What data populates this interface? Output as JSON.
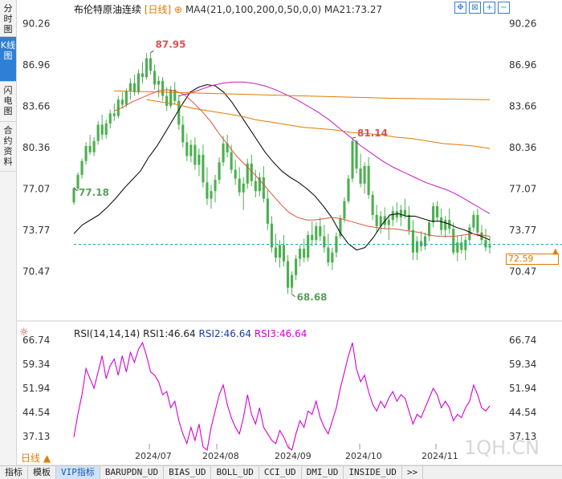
{
  "sidebar": {
    "tabs": [
      {
        "label": "分时图",
        "active": false
      },
      {
        "label": "K线图",
        "active": true
      },
      {
        "label": "闪电图",
        "active": false
      },
      {
        "label": "合约资料",
        "active": false
      }
    ]
  },
  "header": {
    "name": "布伦特原油连续",
    "period": "[日线]",
    "ma4": "MA4(21,0,100,200,0,50,0,0)",
    "ma21": "MA21:73.27"
  },
  "toolbar_icons": [
    "expand-icon",
    "shrink-icon",
    "zoom-in-icon",
    "zoom-out-icon"
  ],
  "price_axis": {
    "left_labels": [
      "90.26",
      "86.96",
      "83.66",
      "80.36",
      "77.07",
      "73.77",
      "70.47"
    ],
    "right_labels": [
      "90.26",
      "86.96",
      "83.66",
      "80.36",
      "77.07",
      "73.77",
      "70.47"
    ]
  },
  "current_price": "72.59",
  "annotations": {
    "high": "87.95",
    "low": "68.68",
    "start": "77.18",
    "peak2": "81.14"
  },
  "rsi": {
    "label": "RSI(14,14,14)",
    "rsi1": "RSI1:46.64",
    "rsi2": "RSI2:46.64",
    "rsi3": "RSI3:46.64",
    "labels": [
      "66.74",
      "59.34",
      "51.94",
      "44.54",
      "37.13"
    ]
  },
  "date_axis": [
    "2024/07",
    "2024/08",
    "2024/09",
    "2024/10",
    "2024/11"
  ],
  "period_button": "日线 ▲",
  "watermark": "1QH.CN",
  "bottom_tabs": [
    {
      "label": "指标",
      "active": false
    },
    {
      "label": "模板",
      "active": false
    },
    {
      "label": "VIP指标",
      "active": true
    },
    {
      "label": "BARUPDN_UD",
      "active": false
    },
    {
      "label": "BIAS_UD",
      "active": false
    },
    {
      "label": "BOLL_UD",
      "active": false
    },
    {
      "label": "CCI_UD",
      "active": false
    },
    {
      "label": "DMI_UD",
      "active": false
    },
    {
      "label": "INSIDE_UD",
      "active": false
    },
    {
      "label": ">>",
      "active": false
    }
  ],
  "colors": {
    "up": "#4caf50",
    "down": "#4caf50",
    "ma_black": "#111111",
    "ma_red": "#e0533b",
    "ma_magenta": "#c31bc3",
    "ma_orange": "#e07b00",
    "rsi": "#d400d4",
    "current_line": "#1e9fb5"
  },
  "chart_data": {
    "type": "candlestick",
    "ylim": [
      67.5,
      91.0
    ],
    "rsi_ylim": [
      32,
      69
    ],
    "candles": [
      [
        76.0,
        77.2,
        75.8,
        77.1
      ],
      [
        77.1,
        78.4,
        76.9,
        78.2
      ],
      [
        78.2,
        79.5,
        77.9,
        79.3
      ],
      [
        79.3,
        80.8,
        79.0,
        80.5
      ],
      [
        80.5,
        81.4,
        79.8,
        80.0
      ],
      [
        80.0,
        81.2,
        79.7,
        80.9
      ],
      [
        80.9,
        82.5,
        80.6,
        82.2
      ],
      [
        82.2,
        83.0,
        81.0,
        81.4
      ],
      [
        81.4,
        82.6,
        81.1,
        82.3
      ],
      [
        82.3,
        83.4,
        81.9,
        83.1
      ],
      [
        83.1,
        83.9,
        82.5,
        82.9
      ],
      [
        82.9,
        84.5,
        82.7,
        84.2
      ],
      [
        84.2,
        84.8,
        83.5,
        83.8
      ],
      [
        83.8,
        85.1,
        83.6,
        84.9
      ],
      [
        84.9,
        85.9,
        84.2,
        85.5
      ],
      [
        85.5,
        86.2,
        84.5,
        84.8
      ],
      [
        84.8,
        86.6,
        84.6,
        86.3
      ],
      [
        86.3,
        87.2,
        85.5,
        86.0
      ],
      [
        86.0,
        87.9,
        85.8,
        87.5
      ],
      [
        87.5,
        87.95,
        86.2,
        86.5
      ],
      [
        86.5,
        87.0,
        85.0,
        85.4
      ],
      [
        85.4,
        86.1,
        84.4,
        85.7
      ],
      [
        85.7,
        86.0,
        84.1,
        84.5
      ],
      [
        84.5,
        85.2,
        83.3,
        83.7
      ],
      [
        83.7,
        85.3,
        83.5,
        85.0
      ],
      [
        85.0,
        85.6,
        83.8,
        84.1
      ],
      [
        84.1,
        84.6,
        81.8,
        82.2
      ],
      [
        82.2,
        82.9,
        80.4,
        80.8
      ],
      [
        80.8,
        81.5,
        79.3,
        79.7
      ],
      [
        79.7,
        81.0,
        79.2,
        80.6
      ],
      [
        80.6,
        81.2,
        78.6,
        79.0
      ],
      [
        79.0,
        80.3,
        78.1,
        79.8
      ],
      [
        79.8,
        80.6,
        77.2,
        77.6
      ],
      [
        77.6,
        78.8,
        75.8,
        76.3
      ],
      [
        76.3,
        77.4,
        75.5,
        76.9
      ],
      [
        76.9,
        78.2,
        76.0,
        77.8
      ],
      [
        77.8,
        79.6,
        77.5,
        79.2
      ],
      [
        79.2,
        81.3,
        78.9,
        80.7
      ],
      [
        80.7,
        81.4,
        79.6,
        80.0
      ],
      [
        80.0,
        80.6,
        78.3,
        78.6
      ],
      [
        78.6,
        79.4,
        77.4,
        77.9
      ],
      [
        77.9,
        78.8,
        76.5,
        76.8
      ],
      [
        76.8,
        78.0,
        75.4,
        77.5
      ],
      [
        77.5,
        79.5,
        77.1,
        79.1
      ],
      [
        79.1,
        79.8,
        77.3,
        77.7
      ],
      [
        77.7,
        78.6,
        76.4,
        76.9
      ],
      [
        76.9,
        78.4,
        76.5,
        78.0
      ],
      [
        78.0,
        78.9,
        76.0,
        76.3
      ],
      [
        76.3,
        77.0,
        73.8,
        74.3
      ],
      [
        74.3,
        74.9,
        72.0,
        72.4
      ],
      [
        72.4,
        73.5,
        71.2,
        71.6
      ],
      [
        71.6,
        73.0,
        70.8,
        72.6
      ],
      [
        72.6,
        73.4,
        70.9,
        71.3
      ],
      [
        71.3,
        71.8,
        68.7,
        69.2
      ],
      [
        69.2,
        70.5,
        68.68,
        70.2
      ],
      [
        70.2,
        71.8,
        69.8,
        71.5
      ],
      [
        71.5,
        72.6,
        70.9,
        72.3
      ],
      [
        72.3,
        73.1,
        71.2,
        71.6
      ],
      [
        71.6,
        73.7,
        71.3,
        73.4
      ],
      [
        73.4,
        74.5,
        72.5,
        73.0
      ],
      [
        73.0,
        74.4,
        72.6,
        74.1
      ],
      [
        74.1,
        74.8,
        72.9,
        73.3
      ],
      [
        73.3,
        74.2,
        72.0,
        72.4
      ],
      [
        72.4,
        73.5,
        70.9,
        71.2
      ],
      [
        71.2,
        72.4,
        70.6,
        72.0
      ],
      [
        72.0,
        73.6,
        71.6,
        73.3
      ],
      [
        73.3,
        75.0,
        73.1,
        74.7
      ],
      [
        74.7,
        76.4,
        74.4,
        76.1
      ],
      [
        76.1,
        78.2,
        75.9,
        77.9
      ],
      [
        77.9,
        81.14,
        77.6,
        80.9
      ],
      [
        80.9,
        81.0,
        78.3,
        78.7
      ],
      [
        78.7,
        79.9,
        77.2,
        77.5
      ],
      [
        77.5,
        79.2,
        76.7,
        78.9
      ],
      [
        78.9,
        79.6,
        76.3,
        76.6
      ],
      [
        76.6,
        76.9,
        74.6,
        75.0
      ],
      [
        75.0,
        75.8,
        73.6,
        74.1
      ],
      [
        74.1,
        75.3,
        73.5,
        74.9
      ],
      [
        74.9,
        75.6,
        73.9,
        74.2
      ],
      [
        74.2,
        75.0,
        73.0,
        74.6
      ],
      [
        74.6,
        75.7,
        74.1,
        75.3
      ],
      [
        75.3,
        76.0,
        74.4,
        74.8
      ],
      [
        74.8,
        75.8,
        74.1,
        75.4
      ],
      [
        75.4,
        76.3,
        74.7,
        75.0
      ],
      [
        75.0,
        75.7,
        73.4,
        73.8
      ],
      [
        73.8,
        74.6,
        71.4,
        72.0
      ],
      [
        72.0,
        73.3,
        71.4,
        72.9
      ],
      [
        72.9,
        73.7,
        72.1,
        72.5
      ],
      [
        72.5,
        73.6,
        72.2,
        73.3
      ],
      [
        73.3,
        74.6,
        72.9,
        74.4
      ],
      [
        74.4,
        76.0,
        74.0,
        75.7
      ],
      [
        75.7,
        76.1,
        74.5,
        74.8
      ],
      [
        74.8,
        75.5,
        73.4,
        73.8
      ],
      [
        73.8,
        74.9,
        73.2,
        74.6
      ],
      [
        74.6,
        75.5,
        73.5,
        73.9
      ],
      [
        73.9,
        74.4,
        71.8,
        72.0
      ],
      [
        72.0,
        73.3,
        71.3,
        72.8
      ],
      [
        72.8,
        73.4,
        71.9,
        72.2
      ],
      [
        72.2,
        73.3,
        71.4,
        73.0
      ],
      [
        73.0,
        74.3,
        72.6,
        74.0
      ],
      [
        74.0,
        75.3,
        73.7,
        75.0
      ],
      [
        75.0,
        75.5,
        73.3,
        73.6
      ],
      [
        73.6,
        74.2,
        72.6,
        73.0
      ],
      [
        73.0,
        73.9,
        72.1,
        72.4
      ],
      [
        72.4,
        73.3,
        71.9,
        72.59
      ]
    ],
    "ma_black": [
      73.5,
      74.2,
      74.6,
      75.0,
      75.6,
      76.3,
      77.1,
      77.8,
      78.5,
      79.6,
      80.5,
      81.6,
      82.7,
      83.8,
      84.8,
      85.2,
      85.4,
      85.3,
      84.8,
      84.0,
      83.0,
      82.0,
      81.0,
      80.0,
      79.2,
      78.5,
      78.0,
      77.6,
      77.1,
      76.5,
      75.7,
      74.8,
      73.6,
      72.7,
      72.2,
      72.4,
      73.2,
      74.2,
      75.0,
      75.1,
      74.9,
      74.9,
      74.7,
      74.5,
      74.5,
      74.3,
      74.0,
      73.8,
      73.5,
      73.3,
      73.0
    ],
    "ma_red": [
      83.3,
      83.6,
      84.0,
      84.3,
      84.6,
      84.9,
      85.0,
      84.9,
      84.6,
      84.0,
      83.3,
      82.5,
      81.5,
      80.6,
      79.7,
      79.0,
      78.3,
      77.5,
      76.7,
      75.9,
      75.2,
      74.8,
      74.6,
      74.6,
      74.7,
      74.8,
      74.7,
      74.5,
      74.3,
      74.1,
      74.0,
      73.9,
      73.9,
      73.8,
      73.7,
      73.6,
      73.4,
      73.3,
      73.3,
      73.3,
      73.4,
      73.5,
      73.4,
      73.3
    ],
    "ma_magenta": [
      84.5,
      84.7,
      85.0,
      85.3,
      85.5,
      85.6,
      85.6,
      85.5,
      85.3,
      85.0,
      84.6,
      84.2,
      83.7,
      83.2,
      82.6,
      81.9,
      81.2,
      80.5,
      79.9,
      79.3,
      78.8,
      78.4,
      78.0,
      77.6,
      77.3,
      77.0,
      76.6,
      76.1,
      75.6,
      75.1
    ],
    "ma_orange": [
      84.2,
      84.0,
      83.8,
      83.5,
      83.3,
      83.1,
      82.9,
      82.6,
      82.4,
      82.2,
      82.0,
      81.9,
      81.8,
      81.6,
      81.5,
      81.4,
      81.2,
      81.1,
      80.9,
      80.7,
      80.6,
      80.5,
      80.3
    ],
    "rsi_values": [
      37,
      44,
      50,
      58,
      55,
      52,
      57,
      62,
      55,
      59,
      61,
      56,
      62,
      57,
      63,
      60,
      64,
      66,
      62,
      57,
      56,
      54,
      50,
      51,
      46,
      48,
      42,
      38,
      35,
      40,
      36,
      41,
      34,
      33,
      40,
      45,
      50,
      53,
      47,
      43,
      40,
      38,
      43,
      50,
      44,
      41,
      46,
      40,
      38,
      36,
      35,
      39,
      37,
      34,
      33,
      38,
      42,
      40,
      45,
      44,
      48,
      43,
      40,
      38,
      42,
      46,
      52,
      57,
      62,
      66,
      58,
      54,
      56,
      51,
      47,
      45,
      48,
      46,
      49,
      51,
      48,
      50,
      49,
      45,
      41,
      44,
      43,
      46,
      49,
      52,
      50,
      46,
      48,
      46,
      42,
      44,
      43,
      46,
      48,
      53,
      50,
      46,
      45,
      46.6
    ]
  }
}
